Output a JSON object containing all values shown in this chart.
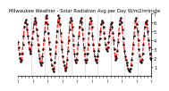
{
  "title": "Milwaukee Weather - Solar Radiation Avg per Day W/m2/minute",
  "line_color": "#ff0000",
  "line_style": "--",
  "line_width": 0.8,
  "marker": ".",
  "marker_color": "#000000",
  "marker_size": 1.5,
  "bg_color": "#ffffff",
  "grid_color": "#999999",
  "grid_style": ":",
  "ylim": [
    0,
    7
  ],
  "yticks": [
    1,
    2,
    3,
    4,
    5,
    6,
    7
  ],
  "ylabel_fontsize": 3.5,
  "xlabel_fontsize": 3.0,
  "title_fontsize": 3.8,
  "values": [
    3.8,
    3.2,
    2.5,
    2.0,
    1.6,
    1.8,
    2.5,
    3.5,
    4.5,
    5.5,
    6.0,
    6.3,
    5.8,
    5.2,
    4.5,
    3.8,
    3.0,
    2.5,
    2.8,
    3.5,
    4.2,
    5.0,
    5.8,
    6.2,
    6.5,
    6.0,
    5.2,
    4.5,
    3.5,
    2.8,
    2.0,
    1.5,
    1.2,
    1.5,
    2.2,
    3.0,
    4.0,
    5.0,
    6.0,
    6.8,
    6.5,
    5.8,
    4.8,
    3.8,
    3.0,
    2.5,
    1.8,
    1.2,
    0.8,
    0.5,
    0.8,
    1.5,
    2.5,
    3.8,
    5.0,
    6.0,
    6.8,
    6.5,
    5.8,
    4.8,
    3.8,
    3.0,
    2.2,
    1.6,
    1.2,
    0.8,
    0.6,
    1.0,
    1.8,
    2.8,
    4.0,
    5.2,
    6.0,
    6.5,
    6.2,
    5.5,
    4.5,
    3.5,
    2.5,
    1.8,
    1.5,
    1.8,
    2.5,
    3.5,
    4.5,
    5.5,
    6.2,
    6.5,
    6.0,
    5.2,
    4.2,
    3.2,
    2.5,
    1.8,
    1.5,
    1.8,
    2.5,
    3.5,
    4.8,
    5.8,
    6.5,
    6.2,
    5.5,
    4.5,
    3.5,
    2.8,
    2.2,
    1.8,
    1.5,
    1.8,
    2.2,
    2.8,
    3.5,
    4.2,
    5.0,
    5.8,
    6.2,
    6.0,
    5.5,
    4.8,
    4.2,
    3.5,
    3.0,
    2.8,
    3.2,
    3.8,
    4.5,
    5.2,
    5.8,
    6.0,
    5.5,
    4.8,
    4.0,
    3.0,
    2.2,
    1.8,
    2.0,
    2.8,
    3.8,
    4.8,
    5.8,
    6.2,
    6.5,
    6.0,
    5.2,
    4.2,
    3.5,
    2.8,
    2.2,
    1.8,
    1.5,
    1.2,
    0.8,
    0.6,
    0.5,
    0.8,
    1.2,
    1.8,
    2.5,
    3.5,
    4.5,
    5.5,
    6.2,
    6.5,
    5.8,
    5.0,
    4.0,
    3.0,
    2.2,
    1.6,
    1.5,
    1.8,
    2.5,
    3.5,
    4.5,
    5.5,
    6.0,
    6.2,
    5.8,
    5.0,
    4.0,
    3.2,
    2.5,
    2.0,
    1.8
  ],
  "n_vert_gridlines": 9,
  "n_points": 185
}
